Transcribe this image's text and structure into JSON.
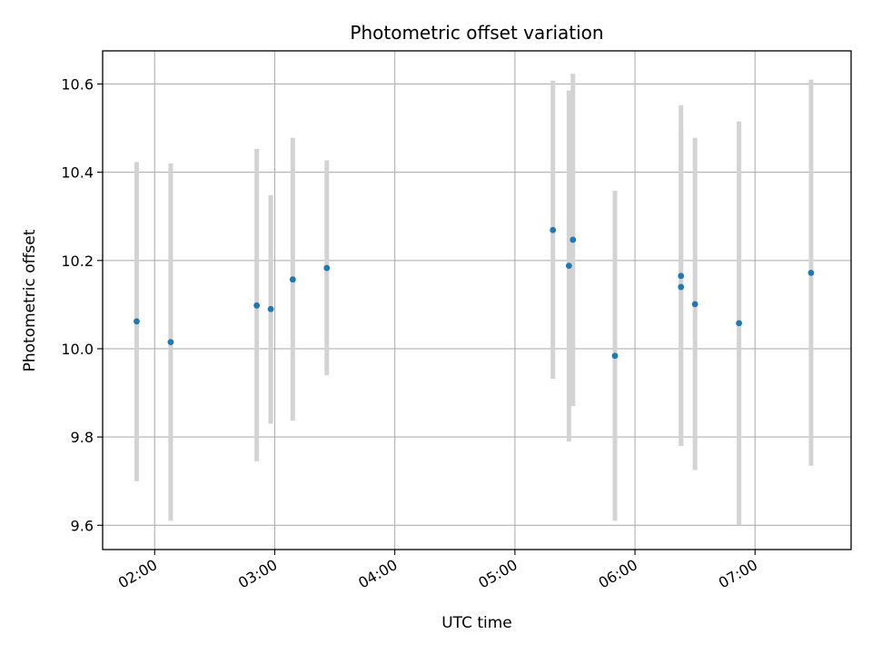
{
  "chart_data": {
    "type": "scatter",
    "title": "Photometric offset variation",
    "xlabel": "UTC time",
    "ylabel": "Photometric offset",
    "x_unit": "UTC HH:MM",
    "xlim": [
      "01:34",
      "07:48"
    ],
    "ylim": [
      9.545,
      10.675
    ],
    "x_ticks": [
      "02:00",
      "03:00",
      "04:00",
      "05:00",
      "06:00",
      "07:00"
    ],
    "y_ticks": [
      9.6,
      9.8,
      10.0,
      10.2,
      10.4,
      10.6
    ],
    "y_tick_labels": [
      "9.6",
      "9.8",
      "10.0",
      "10.2",
      "10.4",
      "10.6"
    ],
    "grid": true,
    "colors": {
      "marker": "#1f77b4",
      "errorbar": "#d3d3d3",
      "grid": "#b0b0b0",
      "axis": "#000000"
    },
    "points": [
      {
        "x": "01:51",
        "y": 10.062,
        "yerr_low": 9.7,
        "yerr_high": 10.423
      },
      {
        "x": "02:08",
        "y": 10.015,
        "yerr_low": 9.61,
        "yerr_high": 10.42
      },
      {
        "x": "02:51",
        "y": 10.098,
        "yerr_low": 9.745,
        "yerr_high": 10.453
      },
      {
        "x": "02:58",
        "y": 10.09,
        "yerr_low": 9.83,
        "yerr_high": 10.348
      },
      {
        "x": "03:09",
        "y": 10.157,
        "yerr_low": 9.837,
        "yerr_high": 10.478
      },
      {
        "x": "03:26",
        "y": 10.183,
        "yerr_low": 9.94,
        "yerr_high": 10.427
      },
      {
        "x": "05:19",
        "y": 10.269,
        "yerr_low": 9.932,
        "yerr_high": 10.607
      },
      {
        "x": "05:27",
        "y": 10.188,
        "yerr_low": 9.79,
        "yerr_high": 10.585
      },
      {
        "x": "05:29",
        "y": 10.247,
        "yerr_low": 9.87,
        "yerr_high": 10.623
      },
      {
        "x": "05:50",
        "y": 9.984,
        "yerr_low": 9.61,
        "yerr_high": 10.358
      },
      {
        "x": "06:23",
        "y": 10.165,
        "yerr_low": 9.78,
        "yerr_high": 10.552
      },
      {
        "x": "06:23",
        "y": 10.14,
        "yerr_low": 9.78,
        "yerr_high": 10.497
      },
      {
        "x": "06:30",
        "y": 10.101,
        "yerr_low": 9.725,
        "yerr_high": 10.478
      },
      {
        "x": "06:52",
        "y": 10.058,
        "yerr_low": 9.6,
        "yerr_high": 10.515
      },
      {
        "x": "07:28",
        "y": 10.172,
        "yerr_low": 9.735,
        "yerr_high": 10.61
      }
    ]
  }
}
